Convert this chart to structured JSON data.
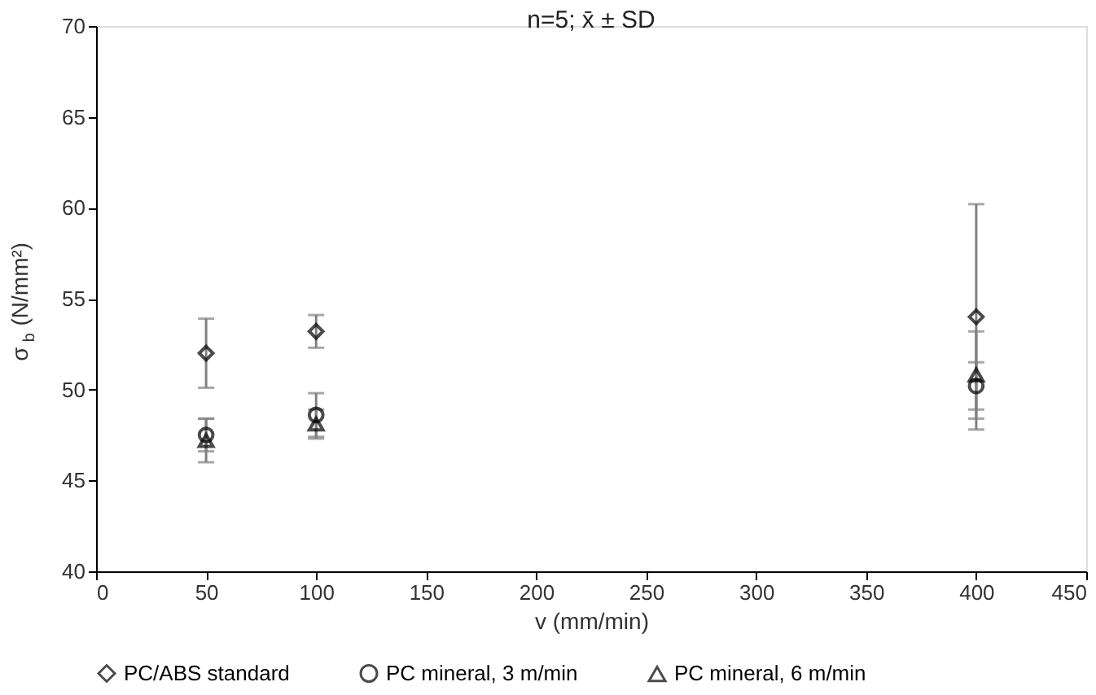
{
  "chart_data": {
    "type": "scatter",
    "title": "n=5; x̄ ± SD",
    "xlabel": "v (mm/min)",
    "ylabel": "σ$_{b}$ (N/mm²)",
    "x": [
      50,
      100,
      400
    ],
    "series": [
      {
        "name": "PC/ABS standard",
        "color": "#000000",
        "marker": "diamond",
        "values": [
          52.0,
          53.2,
          54.0
        ],
        "errors": [
          1.9,
          0.9,
          6.2
        ]
      },
      {
        "name": "PC mineral, 3 m/min",
        "color": "#000000",
        "marker": "circle",
        "values": [
          47.5,
          48.6,
          50.2
        ],
        "errors": [
          0.9,
          1.2,
          1.3
        ]
      },
      {
        "name": "PC mineral, 6 m/min",
        "color": "#000000",
        "marker": "triangle",
        "values": [
          47.2,
          48.1,
          50.8
        ],
        "errors": [
          1.2,
          0.8,
          2.4
        ]
      }
    ],
    "xlim": [
      0,
      450
    ],
    "xticks": [
      0,
      50,
      100,
      150,
      200,
      250,
      300,
      350,
      400,
      450
    ],
    "ylim": [
      40,
      70
    ],
    "yticks": [
      40,
      45,
      50,
      55,
      60,
      65,
      70
    ],
    "grid": false,
    "legend": "bottom"
  }
}
